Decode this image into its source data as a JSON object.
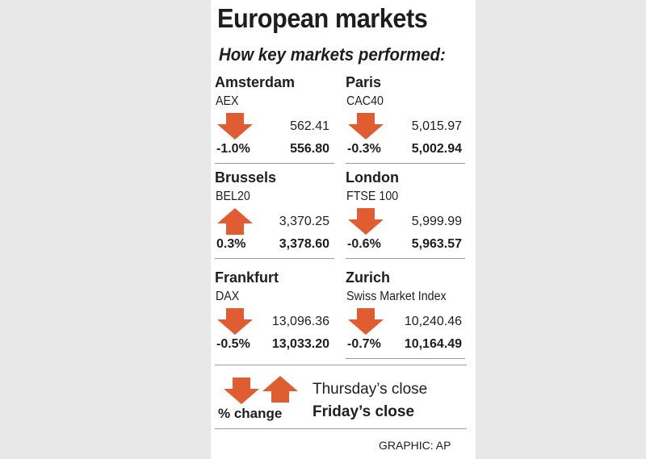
{
  "chart_data": {
    "type": "table",
    "title": "European markets",
    "subtitle": "How key markets performed:",
    "markets": [
      {
        "city": "Amsterdam",
        "index": "AEX",
        "previous": "562.41",
        "current": "556.80",
        "change": "-1.0%",
        "change_value": -1.0,
        "direction": "down"
      },
      {
        "city": "Paris",
        "index": "CAC40",
        "previous": "5,015.97",
        "current": "5,002.94",
        "change": "-0.3%",
        "change_value": -0.3,
        "direction": "down"
      },
      {
        "city": "Brussels",
        "index": "BEL20",
        "previous": "3,370.25",
        "current": "3,378.60",
        "change": "0.3%",
        "change_value": 0.3,
        "direction": "up"
      },
      {
        "city": "London",
        "index": "FTSE 100",
        "previous": "5,999.99",
        "current": "5,963.57",
        "change": "-0.6%",
        "change_value": -0.6,
        "direction": "down"
      },
      {
        "city": "Frankfurt",
        "index": "DAX",
        "previous": "13,096.36",
        "current": "13,033.20",
        "change": "-0.5%",
        "change_value": -0.5,
        "direction": "down"
      },
      {
        "city": "Zurich",
        "index": "Swiss Market Index",
        "previous": "10,240.46",
        "current": "10,164.49",
        "change": "-0.7%",
        "change_value": -0.7,
        "direction": "down"
      }
    ],
    "legend": {
      "previous": "Thursday’s close",
      "current": "Friday’s close",
      "change": "% change"
    },
    "credit": "GRAPHIC: AP"
  },
  "colors": {
    "arrow": "#e05d32",
    "text": "#1e1e1e",
    "rule": "#9a9a9a",
    "background": "#e8e8e8",
    "card": "#ffffff"
  },
  "icons": {
    "down": "down-arrow-icon",
    "up": "up-arrow-icon"
  }
}
